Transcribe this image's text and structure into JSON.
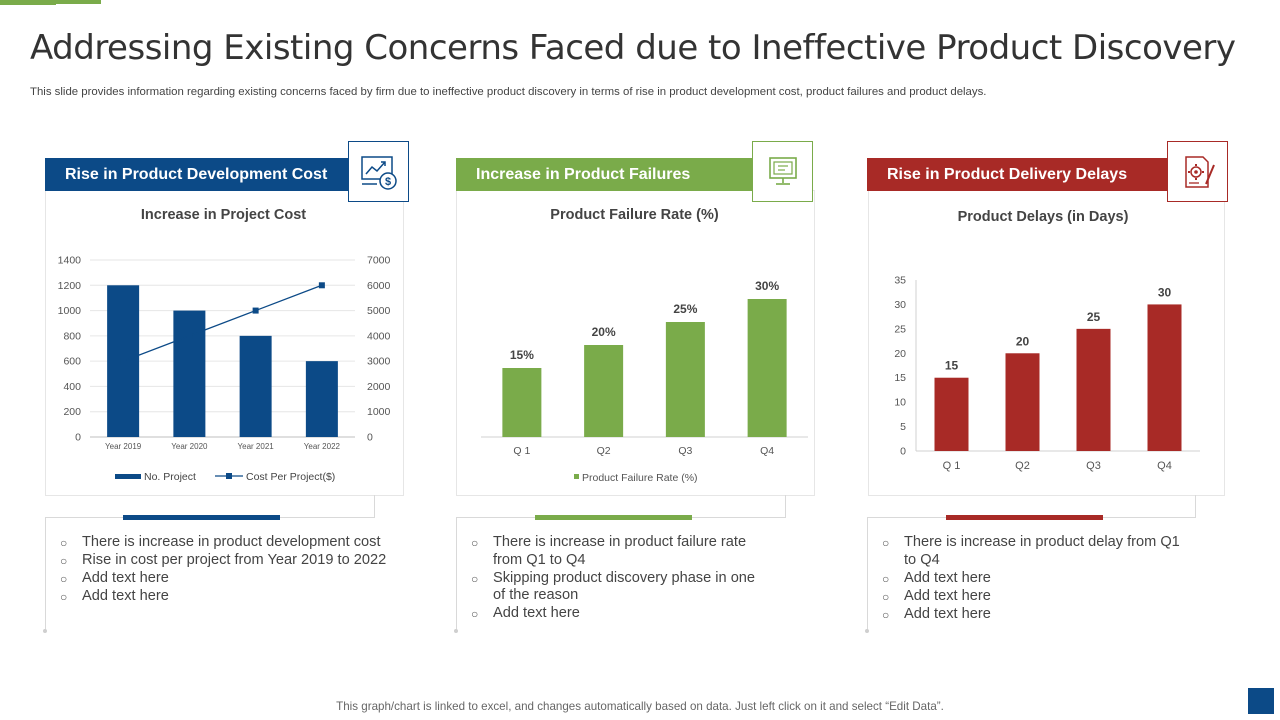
{
  "title": "Addressing Existing Concerns Faced due to Ineffective Product Discovery",
  "subtitle": "This slide provides information regarding existing concerns faced by firm due to ineffective product discovery in terms of rise in product development cost, product failures and product delays.",
  "footer": "This graph/chart is linked to excel, and changes automatically based on data. Just left click on it and select “Edit Data”.",
  "colors": {
    "blue": "#0c4a87",
    "green": "#7aab4a",
    "red": "#a82a26"
  },
  "panels": [
    {
      "heading": "Rise in Product Development Cost",
      "icon": "cost-chart-dollar-icon",
      "bullets": [
        "There is increase in product development cost",
        "Rise in cost per project from Year 2019 to 2022",
        "Add text here",
        "Add text here"
      ]
    },
    {
      "heading": "Increase in Product Failures",
      "icon": "computer-monitor-icon",
      "bullets": [
        "There is increase in product failure rate from Q1 to Q4",
        "Skipping product discovery phase in one of the reason",
        "Add text here"
      ]
    },
    {
      "heading": "Rise in Product Delivery Delays",
      "icon": "document-gear-pencil-icon",
      "bullets": [
        "There is increase in product delay from Q1 to Q4",
        "Add text here",
        "Add text here",
        "Add text here"
      ]
    }
  ],
  "chart_data": [
    {
      "type": "bar",
      "title": "Increase in Project Cost",
      "categories": [
        "Year 2019",
        "Year 2020",
        "Year 2021",
        "Year 2022"
      ],
      "series": [
        {
          "name": "No. Project",
          "kind": "bar",
          "axis": "left",
          "values": [
            1200,
            1000,
            800,
            600
          ]
        },
        {
          "name": "Cost Per Project($)",
          "kind": "line",
          "axis": "right",
          "values": [
            3000,
            4000,
            5000,
            6000
          ]
        }
      ],
      "y_ticks": [
        "0",
        "200",
        "400",
        "600",
        "800",
        "1000",
        "1200",
        "1400"
      ],
      "y2_ticks": [
        "0",
        "1000",
        "2000",
        "3000",
        "4000",
        "5000",
        "6000",
        "7000"
      ],
      "ylim": [
        0,
        1400
      ],
      "y2lim": [
        0,
        7000
      ],
      "legend": "bottom"
    },
    {
      "type": "bar",
      "title": "Product Failure Rate (%)",
      "categories": [
        "Q 1",
        "Q2",
        "Q3",
        "Q4"
      ],
      "values": [
        15,
        20,
        25,
        30
      ],
      "data_labels": [
        "15%",
        "20%",
        "25%",
        "30%"
      ],
      "series_name": "Product Failure Rate (%)",
      "ylim": [
        0,
        30
      ],
      "legend": "bottom"
    },
    {
      "type": "bar",
      "title": "Product Delays (in Days)",
      "categories": [
        "Q 1",
        "Q2",
        "Q3",
        "Q4"
      ],
      "values": [
        15,
        20,
        25,
        30
      ],
      "data_labels": [
        "15",
        "20",
        "25",
        "30"
      ],
      "y_ticks": [
        "0",
        "5",
        "10",
        "15",
        "20",
        "25",
        "30",
        "35"
      ],
      "ylim": [
        0,
        35
      ]
    }
  ]
}
